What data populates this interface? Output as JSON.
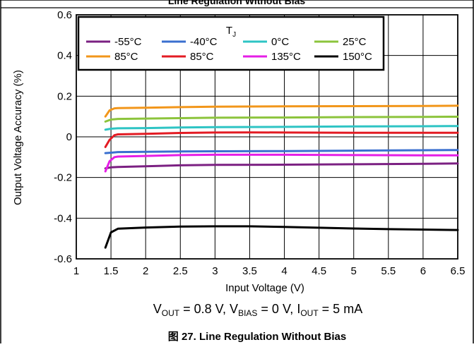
{
  "figure": {
    "top_caption": "Line Regulation Without Bias",
    "caption_prefix": "图 27.",
    "caption_title": "Line Regulation Without Bias",
    "conditions": {
      "v_label": "V",
      "v_sub": "OUT",
      "v_value": " = 0.8 V, ",
      "bias_label": "V",
      "bias_sub": "BIAS",
      "bias_value": " = 0 V, ",
      "i_label": "I",
      "i_sub": "OUT",
      "i_value": " = 5 mA"
    }
  },
  "chart_data": {
    "type": "line",
    "title": "",
    "xlabel": "Input Voltage (V)",
    "ylabel": "Output Voltage Accuracy (%)",
    "xlim": [
      1,
      6.5
    ],
    "ylim": [
      -0.6,
      0.6
    ],
    "xticks": [
      1,
      1.5,
      2,
      2.5,
      3,
      3.5,
      4,
      4.5,
      5,
      5.5,
      6,
      6.5
    ],
    "xtick_labels": [
      "1",
      "1.5",
      "2",
      "2.5",
      "3",
      "3.5",
      "4",
      "4.5",
      "5",
      "5.5",
      "6",
      "6.5"
    ],
    "yticks": [
      -0.6,
      -0.4,
      -0.2,
      0,
      0.2,
      0.4,
      0.6
    ],
    "ytick_labels": [
      "-0.6",
      "-0.4",
      "-0.2",
      "0",
      "0.2",
      "0.4",
      "0.6"
    ],
    "grid": true,
    "legend": {
      "title_main": "T",
      "title_sub": "J",
      "placement": "top-center",
      "columns": 4
    },
    "series": [
      {
        "name": "-55°C",
        "color": "#7b2082",
        "x": [
          1.42,
          1.5,
          1.6,
          2,
          2.5,
          3,
          4,
          5,
          6,
          6.5
        ],
        "y": [
          -0.155,
          -0.15,
          -0.148,
          -0.145,
          -0.14,
          -0.138,
          -0.137,
          -0.135,
          -0.133,
          -0.131
        ]
      },
      {
        "name": "-40°C",
        "color": "#3a6fcf",
        "x": [
          1.42,
          1.5,
          1.6,
          2,
          2.5,
          3,
          4,
          5,
          6,
          6.5
        ],
        "y": [
          -0.08,
          -0.078,
          -0.075,
          -0.074,
          -0.072,
          -0.071,
          -0.07,
          -0.068,
          -0.066,
          -0.065
        ]
      },
      {
        "name": "0°C",
        "color": "#2ec4c4",
        "x": [
          1.42,
          1.5,
          1.6,
          2,
          2.5,
          3,
          4,
          5,
          6,
          6.5
        ],
        "y": [
          0.035,
          0.04,
          0.042,
          0.043,
          0.046,
          0.048,
          0.049,
          0.051,
          0.052,
          0.053
        ]
      },
      {
        "name": "25°C",
        "color": "#8cc43c",
        "x": [
          1.42,
          1.5,
          1.6,
          2,
          2.5,
          3,
          4,
          5,
          6,
          6.5
        ],
        "y": [
          0.075,
          0.085,
          0.088,
          0.09,
          0.092,
          0.094,
          0.095,
          0.097,
          0.098,
          0.099
        ]
      },
      {
        "name": "85°C",
        "color": "#f2961a",
        "x": [
          1.42,
          1.48,
          1.55,
          1.6,
          2,
          2.5,
          3,
          4,
          5,
          6,
          6.5
        ],
        "y": [
          0.1,
          0.13,
          0.14,
          0.141,
          0.143,
          0.146,
          0.148,
          0.15,
          0.151,
          0.152,
          0.153
        ]
      },
      {
        "name": "85°C",
        "color": "#e31b23",
        "x": [
          1.42,
          1.48,
          1.55,
          1.6,
          2,
          2.5,
          3,
          3.5,
          4,
          5,
          6,
          6.5
        ],
        "y": [
          -0.05,
          -0.015,
          0.008,
          0.012,
          0.015,
          0.019,
          0.021,
          0.022,
          0.021,
          0.02,
          0.02,
          0.02
        ]
      },
      {
        "name": "135°C",
        "color": "#e51ee6",
        "x": [
          1.42,
          1.48,
          1.55,
          1.6,
          2,
          2.5,
          3,
          4,
          5,
          6,
          6.5
        ],
        "y": [
          -0.17,
          -0.12,
          -0.1,
          -0.097,
          -0.094,
          -0.09,
          -0.088,
          -0.088,
          -0.09,
          -0.091,
          -0.091
        ]
      },
      {
        "name": "150°C",
        "color": "#000000",
        "x": [
          1.42,
          1.5,
          1.6,
          2,
          2.5,
          3,
          3.5,
          4,
          4.5,
          5,
          5.5,
          6,
          6.5
        ],
        "y": [
          -0.545,
          -0.47,
          -0.452,
          -0.446,
          -0.441,
          -0.44,
          -0.44,
          -0.443,
          -0.447,
          -0.451,
          -0.454,
          -0.456,
          -0.458
        ]
      }
    ]
  }
}
